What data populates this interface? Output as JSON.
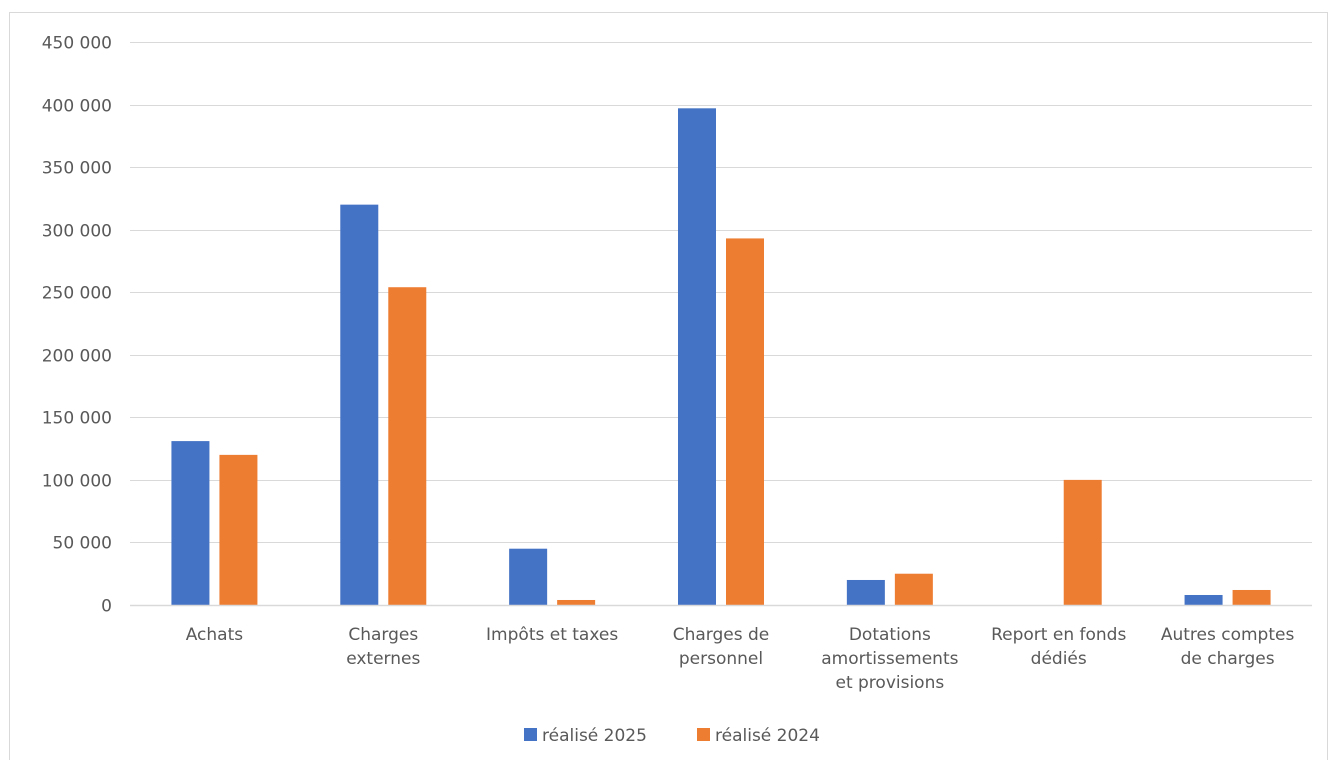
{
  "chart_data": {
    "type": "bar",
    "categories": [
      [
        "Achats"
      ],
      [
        "Charges",
        "externes"
      ],
      [
        "Impôts et taxes"
      ],
      [
        "Charges de",
        "personnel"
      ],
      [
        "Dotations",
        "amortissements",
        "et provisions"
      ],
      [
        "Report en fonds",
        "dédiés"
      ],
      [
        "Autres comptes",
        "de charges"
      ]
    ],
    "series": [
      {
        "name": "réalisé 2025",
        "color": "#4472C4",
        "values": [
          131000,
          320000,
          45000,
          397000,
          20000,
          0,
          8000
        ]
      },
      {
        "name": "réalisé 2024",
        "color": "#ED7D31",
        "values": [
          120000,
          254000,
          4000,
          293000,
          25000,
          100000,
          12000
        ]
      }
    ],
    "ylim": [
      0,
      450000
    ],
    "yticks": [
      0,
      50000,
      100000,
      150000,
      200000,
      250000,
      300000,
      350000,
      400000,
      450000
    ],
    "ytick_labels": [
      "0",
      "50 000",
      "100 000",
      "150 000",
      "200 000",
      "250 000",
      "300 000",
      "350 000",
      "400 000",
      "450 000"
    ],
    "grid": true,
    "legend_position": "bottom",
    "title": "",
    "xlabel": "",
    "ylabel": ""
  }
}
